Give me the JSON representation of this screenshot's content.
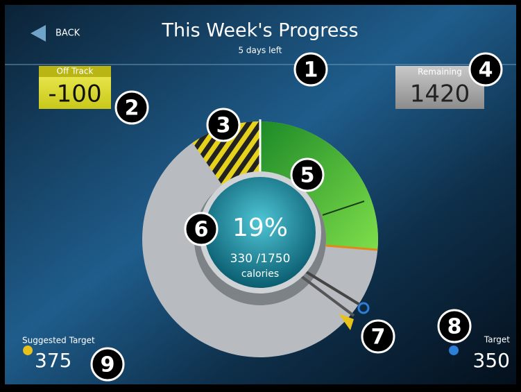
{
  "header": {
    "back": "BACK",
    "title": "This Week's Progress",
    "subtitle": "5 days left"
  },
  "status": {
    "label": "Off Track",
    "value": "-100"
  },
  "remaining": {
    "label": "Remaining",
    "value": "1420"
  },
  "progress": {
    "percent": "19%",
    "amount": "330 /1750",
    "unit": "calories"
  },
  "suggested_target": {
    "label": "Suggested Target",
    "value": "375"
  },
  "target": {
    "label": "Target",
    "value": "350"
  },
  "callouts": [
    "1",
    "2",
    "3",
    "4",
    "5",
    "6",
    "7",
    "8",
    "9"
  ]
}
